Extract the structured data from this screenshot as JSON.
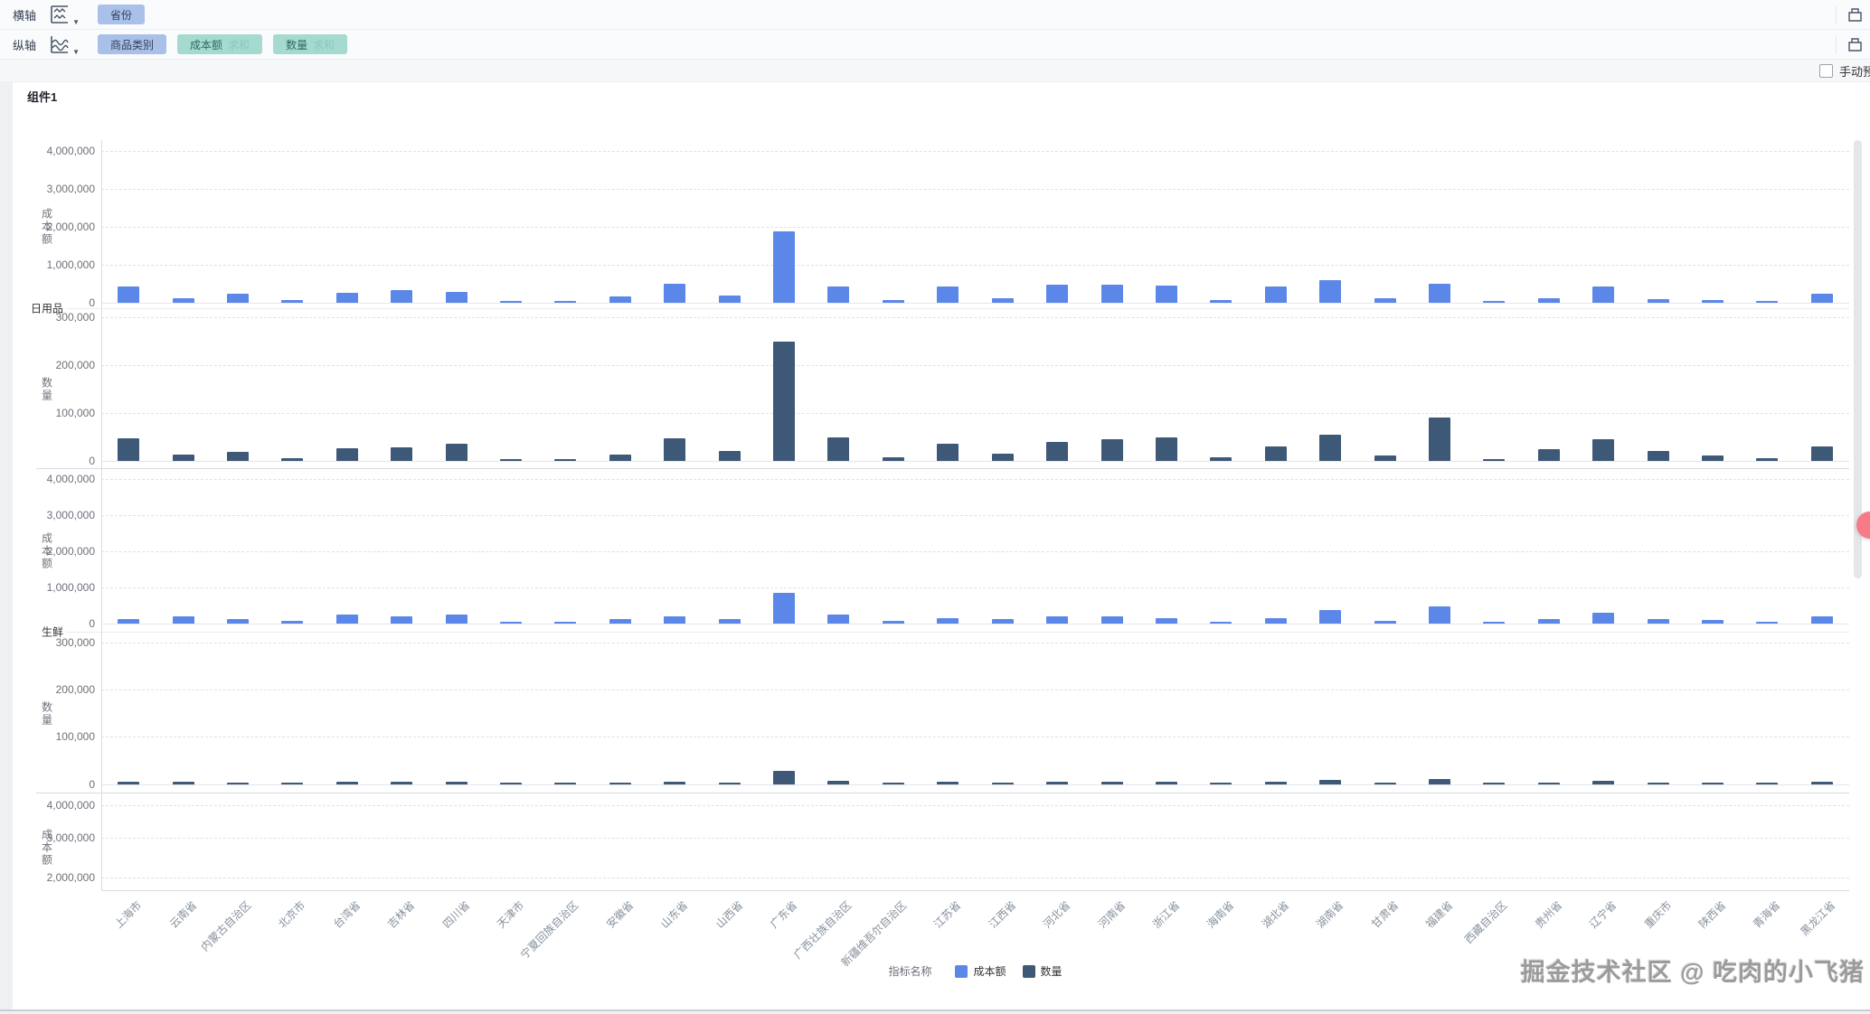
{
  "toolbar": {
    "rows": [
      {
        "label": "横轴",
        "pills": [
          {
            "text": "省份",
            "type": "dimension"
          }
        ]
      },
      {
        "label": "纵轴",
        "pills": [
          {
            "text": "商品类别",
            "type": "dimension"
          },
          {
            "text": "成本额",
            "suffix": "求和",
            "type": "measure"
          },
          {
            "text": "数量",
            "suffix": "求和",
            "type": "measure"
          }
        ]
      }
    ],
    "manual_preview_label": "手动预"
  },
  "card": {
    "title": "组件1"
  },
  "colors": {
    "measure_blue": "#5b87e8",
    "measure_navy": "#3e5877",
    "dimension_pill": "#a9c0e8",
    "measure_pill": "#a4dacf"
  },
  "watermark": "掘金技术社区 @ 吃肉的小飞猪",
  "chart_data": {
    "type": "bar",
    "title": "组件1",
    "xlabel": "省份",
    "grid": "dashed-horizontal",
    "legend_position": "bottom-center",
    "categories": [
      "上海市",
      "云南省",
      "内蒙古自治区",
      "北京市",
      "台湾省",
      "吉林省",
      "四川省",
      "天津市",
      "宁夏回族自治区",
      "安徽省",
      "山东省",
      "山西省",
      "广东省",
      "广西壮族自治区",
      "新疆维吾尔自治区",
      "江苏省",
      "江西省",
      "河北省",
      "河南省",
      "浙江省",
      "海南省",
      "湖北省",
      "湖南省",
      "甘肃省",
      "福建省",
      "西藏自治区",
      "贵州省",
      "辽宁省",
      "重庆市",
      "陕西省",
      "青海省",
      "黑龙江省"
    ],
    "group_labels": [
      {
        "text": "日用品"
      },
      {
        "text": "生鲜"
      }
    ],
    "panels": [
      {
        "group": "日用品",
        "axis_title": "成本额",
        "series": "成本额",
        "axis_ticks": [
          "4,000,000",
          "3,000,000",
          "2,000,000",
          "1,000,000",
          "0"
        ],
        "axis_max": 4000000,
        "ylim": [
          0,
          4000000
        ],
        "values": [
          420000,
          130000,
          230000,
          60000,
          260000,
          330000,
          290000,
          50000,
          40000,
          160000,
          500000,
          180000,
          1880000,
          440000,
          80000,
          440000,
          130000,
          480000,
          470000,
          460000,
          60000,
          440000,
          600000,
          110000,
          510000,
          25000,
          130000,
          440000,
          90000,
          70000,
          45000,
          240000
        ]
      },
      {
        "group": "日用品",
        "axis_title": "数量",
        "series": "数量",
        "axis_ticks": [
          "300,000",
          "200,000",
          "100,000",
          "0"
        ],
        "axis_max": 300000,
        "ylim": [
          0,
          300000
        ],
        "values": [
          47000,
          13000,
          18000,
          5000,
          27000,
          29000,
          35000,
          4000,
          4000,
          14000,
          47000,
          20000,
          250000,
          50000,
          8000,
          35000,
          15000,
          40000,
          45000,
          50000,
          8000,
          30000,
          55000,
          12000,
          90000,
          4000,
          25000,
          45000,
          20000,
          12000,
          5000,
          30000
        ]
      },
      {
        "group": "生鲜",
        "axis_title": "成本额",
        "series": "成本额",
        "axis_ticks": [
          "4,000,000",
          "3,000,000",
          "2,000,000",
          "1,000,000",
          "0"
        ],
        "axis_max": 4000000,
        "ylim": [
          0,
          4000000
        ],
        "values": [
          120000,
          190000,
          120000,
          70000,
          240000,
          190000,
          240000,
          48000,
          48000,
          120000,
          190000,
          120000,
          840000,
          240000,
          72000,
          140000,
          120000,
          190000,
          190000,
          140000,
          48000,
          140000,
          380000,
          72000,
          480000,
          48000,
          120000,
          290000,
          120000,
          96000,
          48000,
          190000
        ]
      },
      {
        "group": "生鲜",
        "axis_title": "数量",
        "series": "数量",
        "axis_ticks": [
          "300,000",
          "200,000",
          "100,000",
          "0"
        ],
        "axis_max": 300000,
        "ylim": [
          0,
          300000
        ],
        "values": [
          5000,
          5000,
          4000,
          2000,
          6000,
          5000,
          6000,
          2000,
          2000,
          4000,
          6000,
          4000,
          28000,
          7000,
          2000,
          5000,
          4000,
          6000,
          6000,
          5000,
          2000,
          5000,
          9000,
          2000,
          12000,
          2000,
          4000,
          7000,
          4000,
          3000,
          2000,
          5000
        ]
      },
      {
        "group": "",
        "axis_title": "成本额",
        "series": "成本额",
        "axis_ticks": [
          "4,000,000",
          "3,000,000",
          "2,000,000"
        ],
        "axis_max": 4000000,
        "ylim": [
          0,
          4000000
        ],
        "values": []
      }
    ],
    "legend": {
      "title": "指标名称",
      "items": [
        {
          "name": "成本额",
          "color": "#5b87e8"
        },
        {
          "name": "数量",
          "color": "#3e5877"
        }
      ]
    }
  }
}
